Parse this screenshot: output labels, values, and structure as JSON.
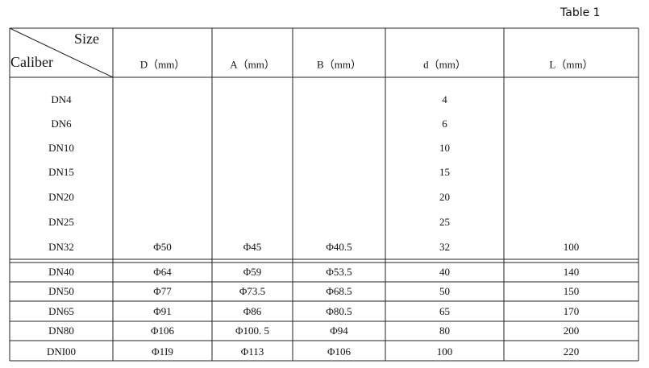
{
  "caption": "Table 1",
  "header": {
    "size": "Size",
    "caliber": "Caliber",
    "columns": [
      "D（mm）",
      "A（mm）",
      "B（mm）",
      "d（mm）",
      "L（mm）"
    ]
  },
  "rows": [
    {
      "caliber": "DN4",
      "d": "4"
    },
    {
      "caliber": "DN6",
      "d": "6"
    },
    {
      "caliber": "DN10",
      "d": "10"
    },
    {
      "caliber": "DN15",
      "d": "15"
    },
    {
      "caliber": "DN20",
      "d": "20"
    },
    {
      "caliber": "DN25",
      "d": "25"
    },
    {
      "caliber": "DN32",
      "D": "Φ50",
      "A": "Φ45",
      "B": "Φ40.5",
      "d": "32",
      "L": "100"
    },
    {
      "caliber": "DN40",
      "D": "Φ64",
      "A": "Φ59",
      "B": "Φ53.5",
      "d": "40",
      "L": "140"
    },
    {
      "caliber": "DN50",
      "D": "Φ77",
      "A": "Φ73.5",
      "B": "Φ68.5",
      "d": "50",
      "L": "150"
    },
    {
      "caliber": "DN65",
      "D": "Φ91",
      "A": "Φ86",
      "B": "Φ80.5",
      "d": "65",
      "L": "170"
    },
    {
      "caliber": "DN80",
      "D": "Φ106",
      "A": "Φ100. 5",
      "B": "Φ94",
      "d": "80",
      "L": "200"
    },
    {
      "caliber": "DNI00",
      "D": "Φ1I9",
      "A": "Φ113",
      "B": "Φ106",
      "d": "100",
      "L": "220"
    }
  ]
}
